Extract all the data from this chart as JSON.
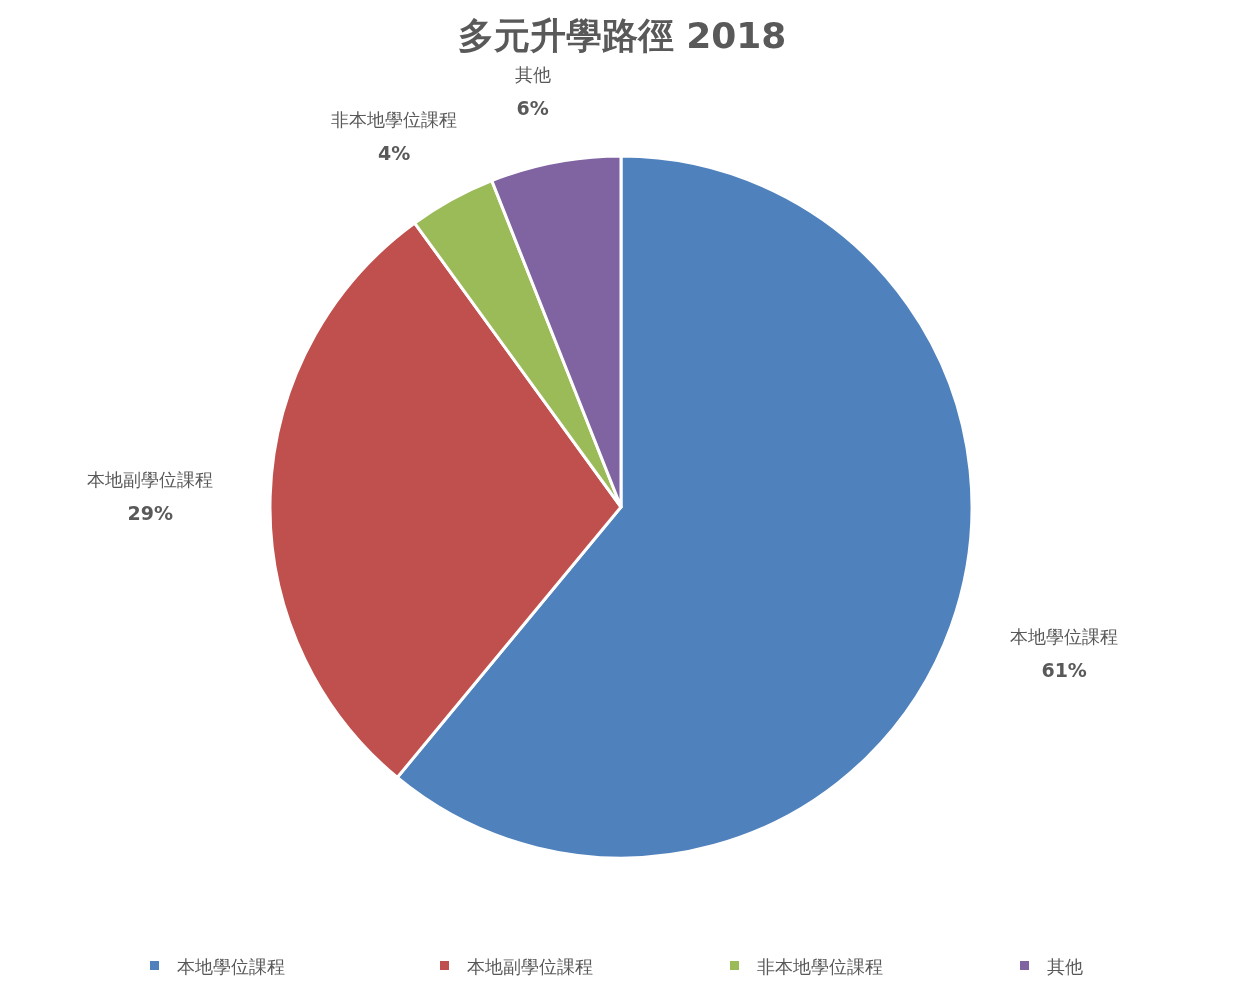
{
  "chart_data": {
    "type": "pie",
    "title": "多元升學路徑 2018",
    "categories": [
      "本地學位課程",
      "本地副學位課程",
      "非本地學位課程",
      "其他"
    ],
    "values": [
      61,
      29,
      4,
      6
    ],
    "colors": [
      "#4f81bd",
      "#c0504d",
      "#9bbb59",
      "#8064a2"
    ],
    "value_labels": [
      "61%",
      "29%",
      "4%",
      "6%"
    ],
    "legend": "bottom"
  }
}
